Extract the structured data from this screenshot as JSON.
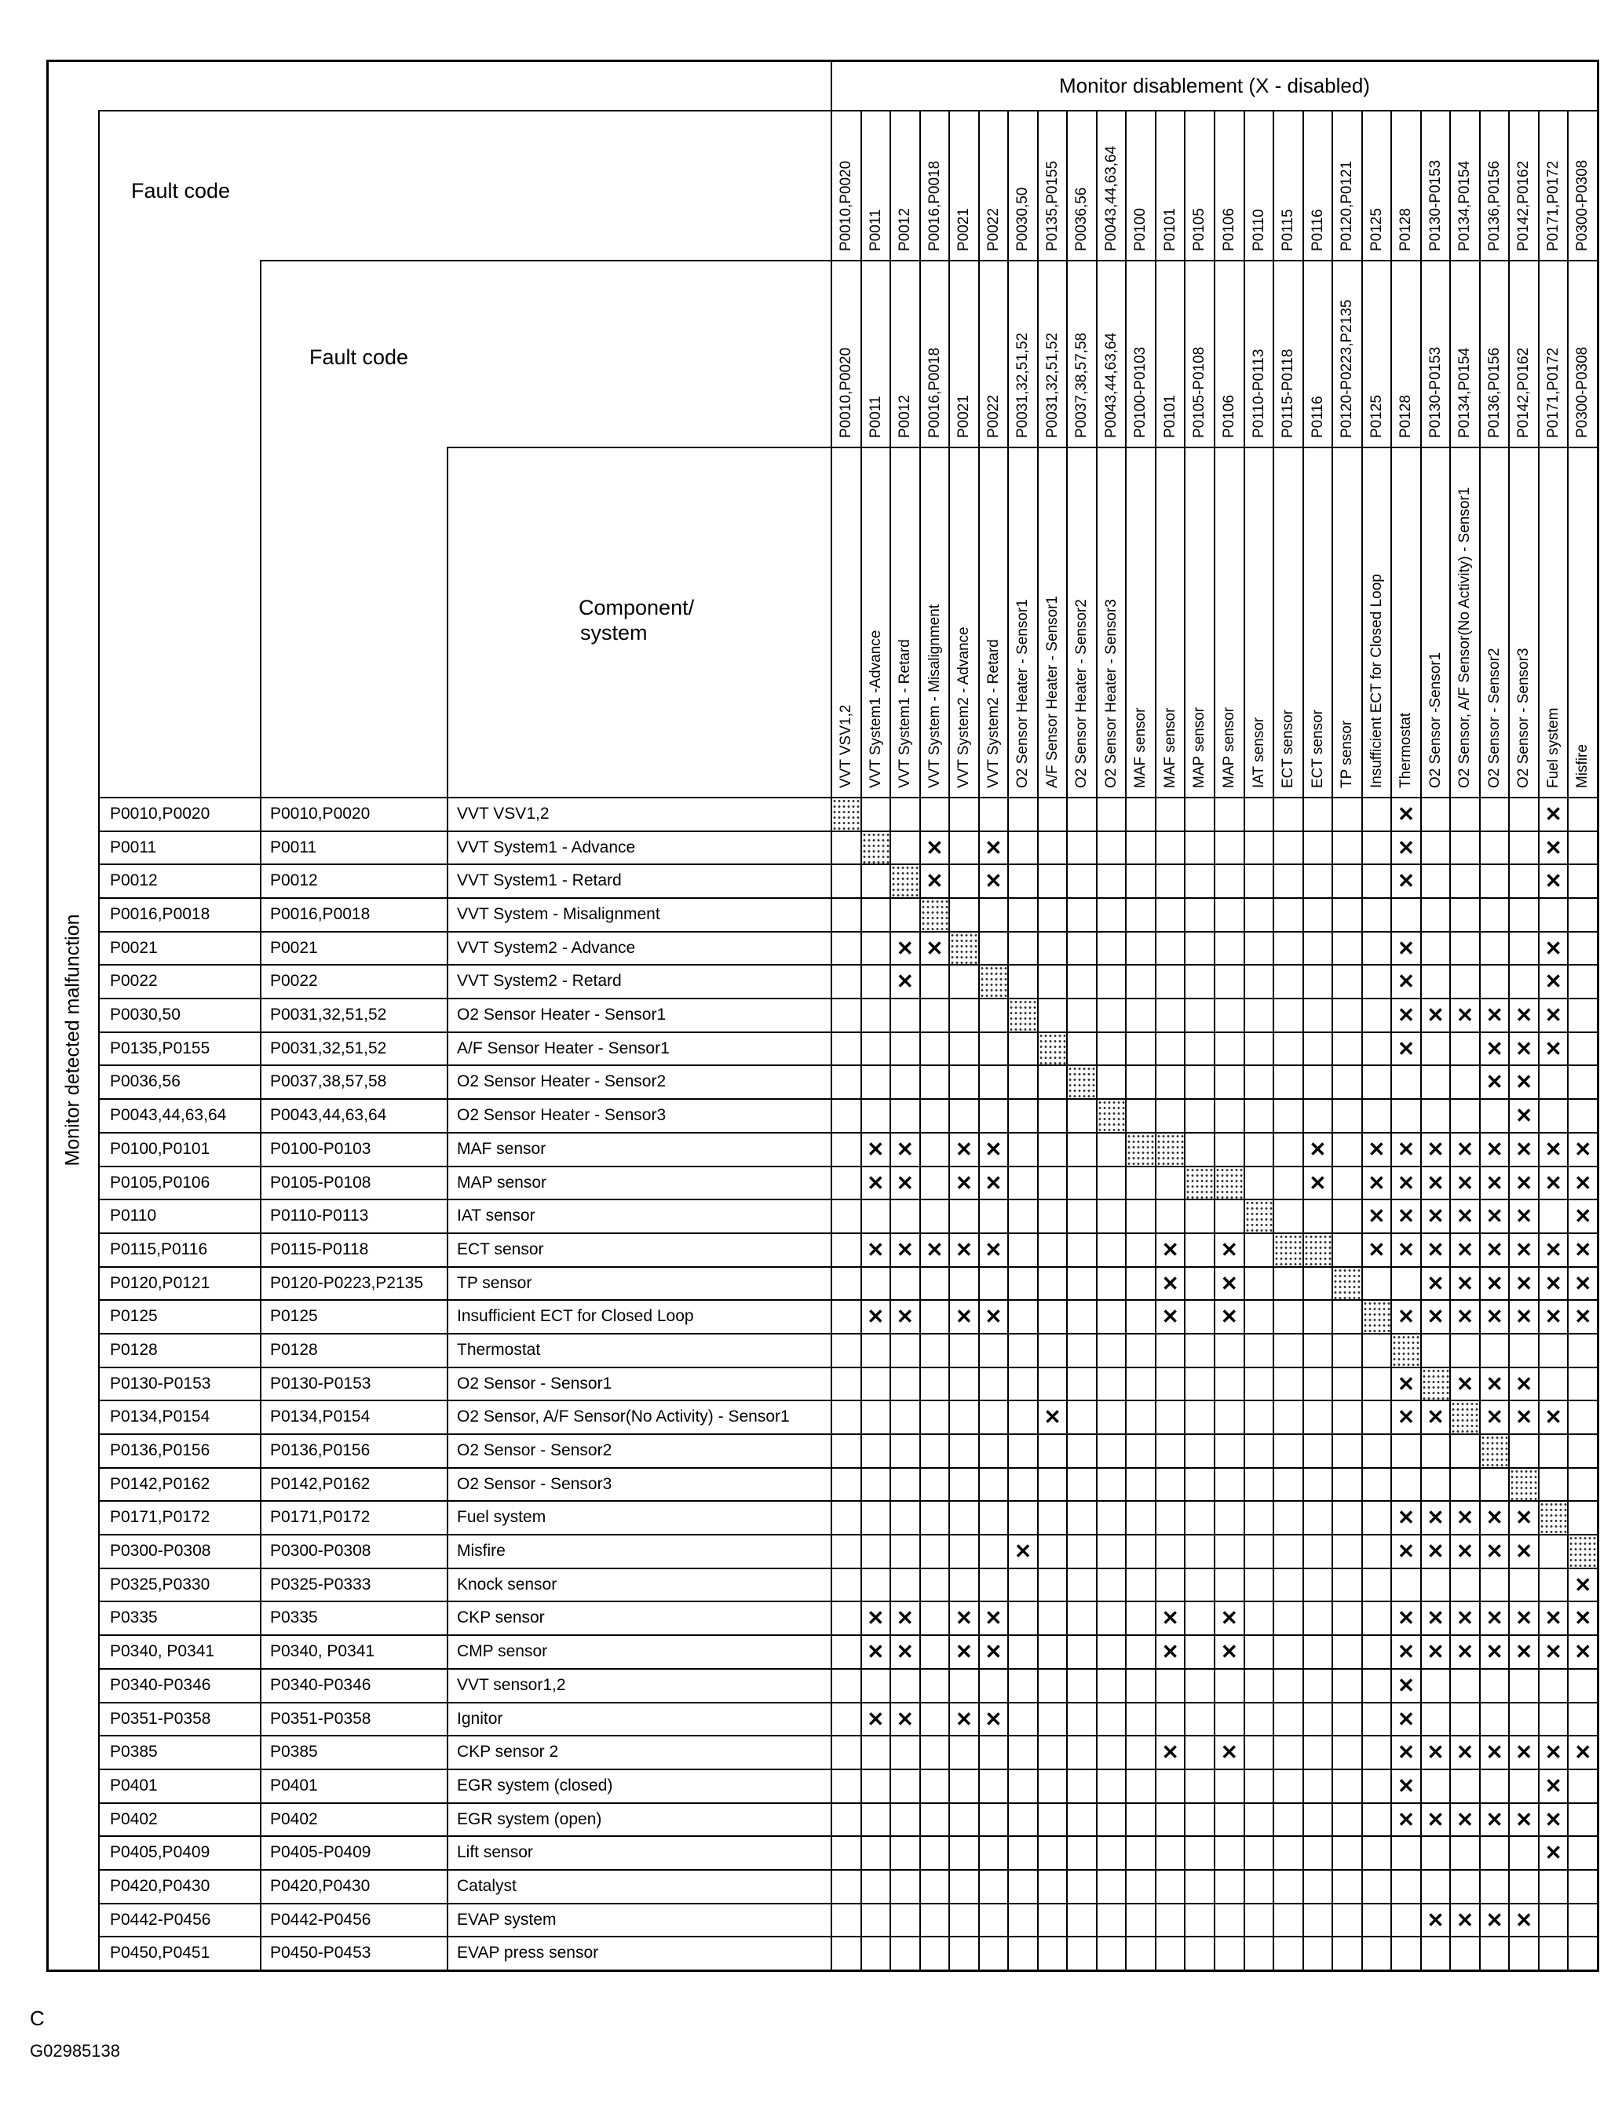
{
  "header": {
    "left_label": "Monitor detected malfunction",
    "monitor_title": "Monitor disablement (X - disabled)",
    "fault_code_outer": "Fault code",
    "fault_code_inner": "Fault code",
    "component_line1": "Component/",
    "component_line2": "system"
  },
  "x_mark": "✕",
  "columns": [
    {
      "monitor_code": "P0010,P0020",
      "fault_code": "P0010,P0020",
      "component": "VVT VSV1,2"
    },
    {
      "monitor_code": "P0011",
      "fault_code": "P0011",
      "component": "VVT System1 -Advance"
    },
    {
      "monitor_code": "P0012",
      "fault_code": "P0012",
      "component": "VVT System1 - Retard"
    },
    {
      "monitor_code": "P0016,P0018",
      "fault_code": "P0016,P0018",
      "component": "VVT System - Misalignment"
    },
    {
      "monitor_code": "P0021",
      "fault_code": "P0021",
      "component": "VVT System2 - Advance"
    },
    {
      "monitor_code": "P0022",
      "fault_code": "P0022",
      "component": "VVT System2 - Retard"
    },
    {
      "monitor_code": "P0030,50",
      "fault_code": "P0031,32,51,52",
      "component": "O2 Sensor  Heater - Sensor1"
    },
    {
      "monitor_code": "P0135,P0155",
      "fault_code": "P0031,32,51,52",
      "component": "A/F Sensor Heater - Sensor1"
    },
    {
      "monitor_code": "P0036,56",
      "fault_code": "P0037,38,57,58",
      "component": "O2 Sensor Heater - Sensor2"
    },
    {
      "monitor_code": "P0043,44,63,64",
      "fault_code": "P0043,44,63,64",
      "component": "O2 Sensor Heater  - Sensor3"
    },
    {
      "monitor_code": "P0100",
      "fault_code": "P0100-P0103",
      "component": "MAF sensor"
    },
    {
      "monitor_code": "P0101",
      "fault_code": "P0101",
      "component": "MAF sensor"
    },
    {
      "monitor_code": "P0105",
      "fault_code": "P0105-P0108",
      "component": "MAP sensor"
    },
    {
      "monitor_code": "P0106",
      "fault_code": "P0106",
      "component": "MAP sensor"
    },
    {
      "monitor_code": "P0110",
      "fault_code": "P0110-P0113",
      "component": "IAT sensor"
    },
    {
      "monitor_code": "P0115",
      "fault_code": "P0115-P0118",
      "component": "ECT sensor"
    },
    {
      "monitor_code": "P0116",
      "fault_code": "P0116",
      "component": "ECT sensor"
    },
    {
      "monitor_code": "P0120,P0121",
      "fault_code": "P0120-P0223,P2135",
      "component": "TP sensor"
    },
    {
      "monitor_code": "P0125",
      "fault_code": "P0125",
      "component": "Insufficient ECT for Closed Loop"
    },
    {
      "monitor_code": "P0128",
      "fault_code": "P0128",
      "component": "Thermostat"
    },
    {
      "monitor_code": "P0130-P0153",
      "fault_code": "P0130-P0153",
      "component": "O2 Sensor -Sensor1"
    },
    {
      "monitor_code": "P0134,P0154",
      "fault_code": "P0134,P0154",
      "component": "O2 Sensor, A/F Sensor(No Activity) - Sensor1"
    },
    {
      "monitor_code": "P0136,P0156",
      "fault_code": "P0136,P0156",
      "component": "O2 Sensor - Sensor2"
    },
    {
      "monitor_code": "P0142,P0162",
      "fault_code": "P0142,P0162",
      "component": "O2 Sensor - Sensor3"
    },
    {
      "monitor_code": "P0171,P0172",
      "fault_code": "P0171,P0172",
      "component": "Fuel system"
    },
    {
      "monitor_code": "P0300-P0308",
      "fault_code": "P0300-P0308",
      "component": "Misfire"
    }
  ],
  "rows": [
    {
      "detected": "P0010,P0020",
      "fault_code": "P0010,P0020",
      "component": "VVT VSV1,2",
      "self": [
        1
      ],
      "disabled": [
        20,
        25
      ]
    },
    {
      "detected": "P0011",
      "fault_code": "P0011",
      "component": "VVT System1 - Advance",
      "self": [
        2
      ],
      "disabled": [
        4,
        6,
        20,
        25
      ]
    },
    {
      "detected": "P0012",
      "fault_code": "P0012",
      "component": "VVT System1 - Retard",
      "self": [
        3
      ],
      "disabled": [
        4,
        6,
        20,
        25
      ]
    },
    {
      "detected": "P0016,P0018",
      "fault_code": "P0016,P0018",
      "component": "VVT System - Misalignment",
      "self": [
        4
      ],
      "disabled": []
    },
    {
      "detected": "P0021",
      "fault_code": "P0021",
      "component": "VVT System2 - Advance",
      "self": [
        5
      ],
      "disabled": [
        3,
        4,
        20,
        25
      ]
    },
    {
      "detected": "P0022",
      "fault_code": "P0022",
      "component": "VVT System2 - Retard",
      "self": [
        6
      ],
      "disabled": [
        3,
        20,
        25
      ]
    },
    {
      "detected": "P0030,50",
      "fault_code": "P0031,32,51,52",
      "component": "O2 Sensor Heater - Sensor1",
      "self": [
        7
      ],
      "disabled": [
        20,
        21,
        22,
        23,
        24,
        25
      ]
    },
    {
      "detected": "P0135,P0155",
      "fault_code": "P0031,32,51,52",
      "component": "A/F Sensor Heater  - Sensor1",
      "self": [
        8
      ],
      "disabled": [
        20,
        23,
        24,
        25
      ]
    },
    {
      "detected": "P0036,56",
      "fault_code": "P0037,38,57,58",
      "component": "O2 Sensor Heater - Sensor2",
      "self": [
        9
      ],
      "disabled": [
        23,
        24
      ]
    },
    {
      "detected": "P0043,44,63,64",
      "fault_code": "P0043,44,63,64",
      "component": "O2 Sensor Heater - Sensor3",
      "self": [
        10
      ],
      "disabled": [
        24
      ]
    },
    {
      "detected": "P0100,P0101",
      "fault_code": "P0100-P0103",
      "component": "MAF sensor",
      "self": [
        11,
        12
      ],
      "disabled": [
        2,
        3,
        5,
        6,
        17,
        19,
        20,
        21,
        22,
        23,
        24,
        25,
        26
      ]
    },
    {
      "detected": "P0105,P0106",
      "fault_code": "P0105-P0108",
      "component": "MAP sensor",
      "self": [
        13,
        14
      ],
      "disabled": [
        2,
        3,
        5,
        6,
        17,
        19,
        20,
        21,
        22,
        23,
        24,
        25,
        26
      ]
    },
    {
      "detected": "P0110",
      "fault_code": "P0110-P0113",
      "component": "IAT sensor",
      "self": [
        15
      ],
      "disabled": [
        19,
        20,
        21,
        22,
        23,
        24,
        26
      ]
    },
    {
      "detected": "P0115,P0116",
      "fault_code": "P0115-P0118",
      "component": "ECT sensor",
      "self": [
        16,
        17
      ],
      "disabled": [
        2,
        3,
        4,
        5,
        6,
        12,
        14,
        19,
        20,
        21,
        22,
        23,
        24,
        25,
        26
      ]
    },
    {
      "detected": "P0120,P0121",
      "fault_code": "P0120-P0223,P2135",
      "component": "TP sensor",
      "self": [
        18
      ],
      "disabled": [
        12,
        14,
        21,
        22,
        23,
        24,
        25,
        26
      ]
    },
    {
      "detected": "P0125",
      "fault_code": "P0125",
      "component": "Insufficient ECT for Closed Loop",
      "self": [
        19
      ],
      "disabled": [
        2,
        3,
        5,
        6,
        12,
        14,
        20,
        21,
        22,
        23,
        24,
        25,
        26
      ]
    },
    {
      "detected": "P0128",
      "fault_code": "P0128",
      "component": "Thermostat",
      "self": [
        20
      ],
      "disabled": []
    },
    {
      "detected": "P0130-P0153",
      "fault_code": "P0130-P0153",
      "component": "O2 Sensor - Sensor1",
      "self": [
        21
      ],
      "disabled": [
        20,
        22,
        23,
        24
      ]
    },
    {
      "detected": "P0134,P0154",
      "fault_code": "P0134,P0154",
      "component": "O2 Sensor, A/F Sensor(No Activity) - Sensor1",
      "self": [
        22
      ],
      "disabled": [
        8,
        20,
        21,
        23,
        24,
        25
      ]
    },
    {
      "detected": "P0136,P0156",
      "fault_code": "P0136,P0156",
      "component": "O2 Sensor - Sensor2",
      "self": [
        23
      ],
      "disabled": []
    },
    {
      "detected": "P0142,P0162",
      "fault_code": "P0142,P0162",
      "component": "O2 Sensor - Sensor3",
      "self": [
        24
      ],
      "disabled": []
    },
    {
      "detected": "P0171,P0172",
      "fault_code": "P0171,P0172",
      "component": "Fuel system",
      "self": [
        25
      ],
      "disabled": [
        20,
        21,
        22,
        23,
        24
      ]
    },
    {
      "detected": "P0300-P0308",
      "fault_code": "P0300-P0308",
      "component": "Misfire",
      "self": [
        26
      ],
      "disabled": [
        7,
        20,
        21,
        22,
        23,
        24
      ]
    },
    {
      "detected": "P0325,P0330",
      "fault_code": "P0325-P0333",
      "component": "Knock sensor",
      "self": [],
      "disabled": [
        26
      ]
    },
    {
      "detected": "P0335",
      "fault_code": "P0335",
      "component": "CKP sensor",
      "self": [],
      "disabled": [
        2,
        3,
        5,
        6,
        12,
        14,
        20,
        21,
        22,
        23,
        24,
        25,
        26
      ]
    },
    {
      "detected": "P0340, P0341",
      "fault_code": "P0340, P0341",
      "component": "CMP sensor",
      "self": [],
      "disabled": [
        2,
        3,
        5,
        6,
        12,
        14,
        20,
        21,
        22,
        23,
        24,
        25,
        26
      ]
    },
    {
      "detected": "P0340-P0346",
      "fault_code": "P0340-P0346",
      "component": "VVT sensor1,2",
      "self": [],
      "disabled": [
        20
      ]
    },
    {
      "detected": "P0351-P0358",
      "fault_code": "P0351-P0358",
      "component": "Ignitor",
      "self": [],
      "disabled": [
        2,
        3,
        5,
        6,
        20
      ]
    },
    {
      "detected": "P0385",
      "fault_code": "P0385",
      "component": "CKP sensor 2",
      "self": [],
      "disabled": [
        12,
        14,
        20,
        21,
        22,
        23,
        24,
        25,
        26
      ]
    },
    {
      "detected": "P0401",
      "fault_code": "P0401",
      "component": "EGR system (closed)",
      "self": [],
      "disabled": [
        20,
        25
      ]
    },
    {
      "detected": "P0402",
      "fault_code": "P0402",
      "component": "EGR system (open)",
      "self": [],
      "disabled": [
        20,
        21,
        22,
        23,
        24,
        25
      ]
    },
    {
      "detected": "P0405,P0409",
      "fault_code": "P0405-P0409",
      "component": "Lift sensor",
      "self": [],
      "disabled": [
        25
      ]
    },
    {
      "detected": "P0420,P0430",
      "fault_code": "P0420,P0430",
      "component": "Catalyst",
      "self": [],
      "disabled": []
    },
    {
      "detected": "P0442-P0456",
      "fault_code": "P0442-P0456",
      "component": "EVAP system",
      "self": [],
      "disabled": [
        21,
        22,
        23,
        24
      ]
    },
    {
      "detected": "P0450,P0451",
      "fault_code": "P0450-P0453",
      "component": "EVAP press sensor",
      "self": [],
      "disabled": []
    }
  ],
  "footer": {
    "letter": "C",
    "figure_id": "G02985138"
  }
}
